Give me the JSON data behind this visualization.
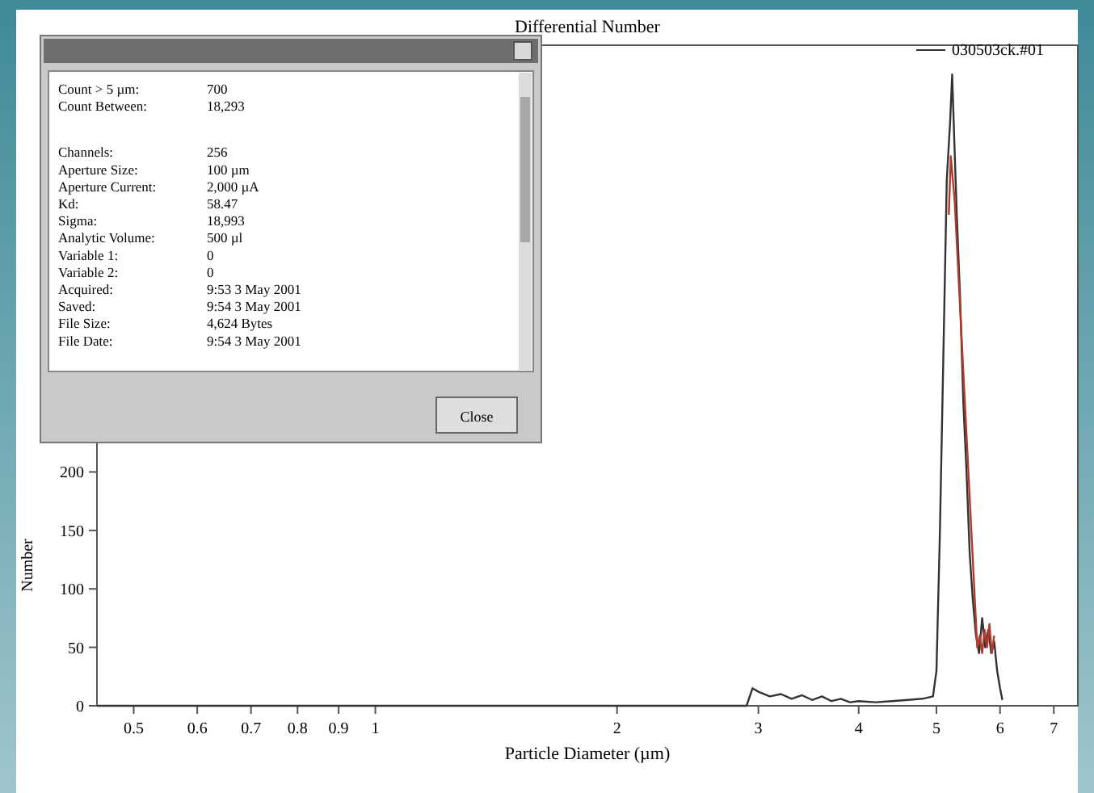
{
  "chart_data": {
    "type": "line",
    "title": "Differential Number",
    "xlabel": "Particle Diameter (µm)",
    "ylabel": "Number",
    "log": "x",
    "grid": false,
    "legend": "top right",
    "marker": "none",
    "line_style": "solid",
    "xlim": [
      0.45,
      7.5
    ],
    "xticks": [
      0.5,
      0.6,
      0.7,
      0.8,
      0.9,
      1,
      2,
      3,
      4,
      5,
      6,
      7
    ],
    "ylim": [
      0,
      565
    ],
    "yticks": [
      0,
      50,
      100,
      150,
      200
    ],
    "series": [
      {
        "name": "030503ck.#01",
        "color": "#333333",
        "x": [
          0.45,
          1,
          2,
          2.9,
          2.95,
          3.0,
          3.1,
          3.2,
          3.3,
          3.4,
          3.5,
          3.6,
          3.7,
          3.8,
          3.9,
          4.0,
          4.2,
          4.4,
          4.6,
          4.8,
          4.95,
          5.0,
          5.05,
          5.1,
          5.15,
          5.2,
          5.23,
          5.27,
          5.3,
          5.35,
          5.4,
          5.45,
          5.5,
          5.55,
          5.6,
          5.65,
          5.7,
          5.75,
          5.8,
          5.85,
          5.9,
          5.95,
          6.0,
          6.04
        ],
        "values": [
          0,
          0,
          0,
          0,
          15,
          12,
          8,
          10,
          6,
          9,
          5,
          8,
          4,
          6,
          3,
          4,
          3,
          4,
          5,
          6,
          8,
          30,
          150,
          300,
          450,
          500,
          540,
          470,
          420,
          350,
          260,
          200,
          130,
          90,
          60,
          45,
          75,
          50,
          65,
          45,
          55,
          30,
          15,
          5
        ]
      },
      {
        "color": "#b03a2e",
        "x": [
          5.18,
          5.21,
          5.24,
          5.27,
          5.62,
          5.66,
          5.7,
          5.74,
          5.78,
          5.82,
          5.86,
          5.9
        ],
        "values": [
          420,
          470,
          450,
          430,
          50,
          60,
          45,
          65,
          50,
          70,
          45,
          60
        ]
      }
    ],
    "annotations": [
      "Count > 5 µm:",
      "700",
      "Count Between:",
      "18,293",
      "Channels:",
      "256",
      "Aperture Size:",
      "100 µm",
      "Aperture Current:",
      "2,000 µA",
      "Kd:",
      "58.47",
      "Sigma:",
      "18,993",
      "Analytic Volume:",
      "500 µl",
      "Variable 1:",
      "0",
      "Variable 2:",
      "0",
      "Acquired:",
      "9:53   3 May 2001",
      "Saved:",
      "9:54   3 May 2001",
      "File Size:",
      "4,624 Bytes",
      "File Date:",
      "9:54   3 May 2001",
      "Close"
    ]
  }
}
